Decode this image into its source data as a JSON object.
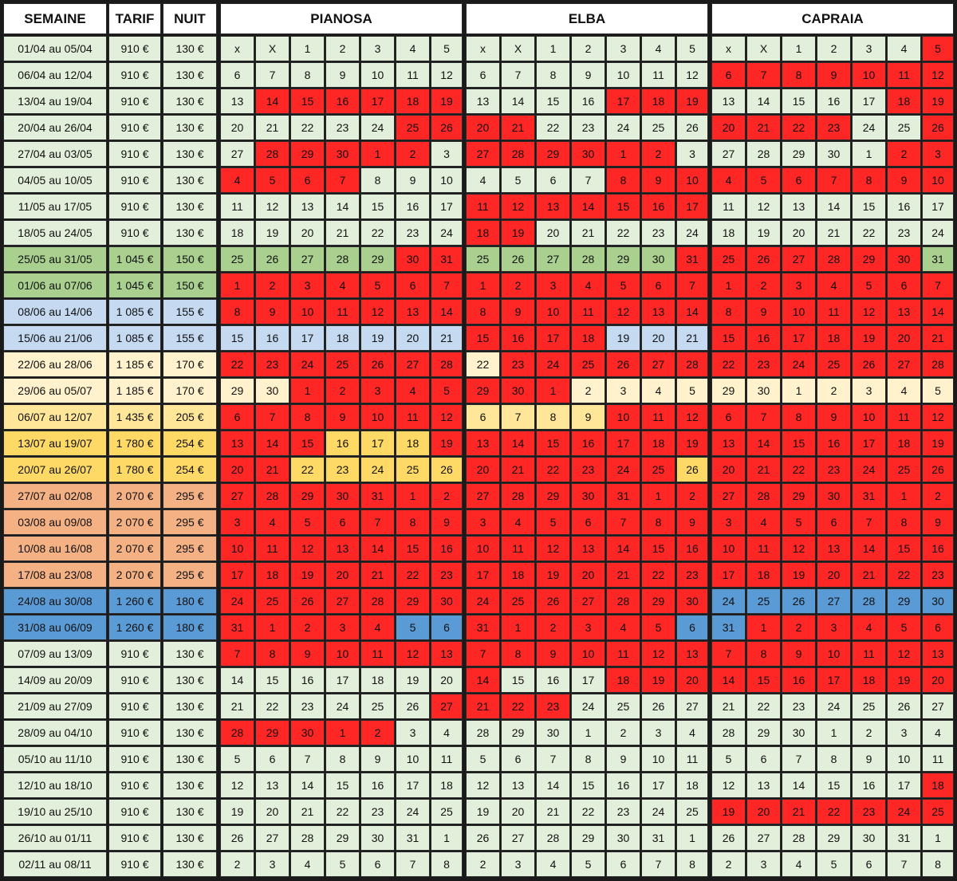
{
  "headers": {
    "week": "SEMAINE",
    "tarif": "TARIF",
    "nuit": "NUIT",
    "pianosa": "PIANOSA",
    "elba": "ELBA",
    "capraia": "CAPRAIA"
  },
  "colors": {
    "g": "#e2efda",
    "G": "#a9d08e",
    "b": "#c5d9f1",
    "B": "#5b9bd5",
    "c": "#fff2cc",
    "y": "#ffe699",
    "Y": "#ffd966",
    "o": "#f4b183",
    "r": "#ff2626",
    "w": "#ffffff"
  },
  "rows": [
    {
      "week": "01/04 au 05/04",
      "tarif": "910 €",
      "nuit": "130 €",
      "days": [
        "x",
        "X",
        "1",
        "2",
        "3",
        "4",
        "5"
      ],
      "color": "g",
      "p": "ggggggg",
      "e": "ggggggg",
      "c": "ggggggr"
    },
    {
      "week": "06/04 au 12/04",
      "tarif": "910 €",
      "nuit": "130 €",
      "days": [
        "6",
        "7",
        "8",
        "9",
        "10",
        "11",
        "12"
      ],
      "color": "g",
      "p": "ggggggg",
      "e": "ggggggg",
      "c": "rrrrrrr"
    },
    {
      "week": "13/04 au 19/04",
      "tarif": "910 €",
      "nuit": "130 €",
      "days": [
        "13",
        "14",
        "15",
        "16",
        "17",
        "18",
        "19"
      ],
      "color": "g",
      "p": "grrrrrr",
      "e": "ggggrrr",
      "c": "gggggrr"
    },
    {
      "week": "20/04 au 26/04",
      "tarif": "910 €",
      "nuit": "130 €",
      "days": [
        "20",
        "21",
        "22",
        "23",
        "24",
        "25",
        "26"
      ],
      "color": "g",
      "p": "gggggrr",
      "e": "rrggggg",
      "c": "rrrrggr"
    },
    {
      "week": "27/04 au 03/05",
      "tarif": "910 €",
      "nuit": "130 €",
      "days": [
        "27",
        "28",
        "29",
        "30",
        "1",
        "2",
        "3"
      ],
      "color": "g",
      "p": "grrrrrg",
      "e": "rrrrrrg",
      "c": "gggggrr"
    },
    {
      "week": "04/05 au 10/05",
      "tarif": "910 €",
      "nuit": "130 €",
      "days": [
        "4",
        "5",
        "6",
        "7",
        "8",
        "9",
        "10"
      ],
      "color": "g",
      "p": "rrrrggg",
      "e": "ggggrrr",
      "c": "rrrrrrr"
    },
    {
      "week": "11/05 au 17/05",
      "tarif": "910 €",
      "nuit": "130 €",
      "days": [
        "11",
        "12",
        "13",
        "14",
        "15",
        "16",
        "17"
      ],
      "color": "g",
      "p": "ggggggg",
      "e": "rrrrrrr",
      "c": "ggggggg"
    },
    {
      "week": "18/05 au 24/05",
      "tarif": "910 €",
      "nuit": "130 €",
      "days": [
        "18",
        "19",
        "20",
        "21",
        "22",
        "23",
        "24"
      ],
      "color": "g",
      "p": "ggggggg",
      "e": "rrggggg",
      "c": "ggggggg"
    },
    {
      "week": "25/05 au 31/05",
      "tarif": "1 045 €",
      "nuit": "150 €",
      "days": [
        "25",
        "26",
        "27",
        "28",
        "29",
        "30",
        "31"
      ],
      "color": "G",
      "p": "GGGGGrr",
      "e": "GGGGGGr",
      "c": "rrrrrrG"
    },
    {
      "week": "01/06 au 07/06",
      "tarif": "1 045 €",
      "nuit": "150 €",
      "days": [
        "1",
        "2",
        "3",
        "4",
        "5",
        "6",
        "7"
      ],
      "color": "G",
      "p": "rrrrrrr",
      "e": "rrrrrrr",
      "c": "rrrrrrr"
    },
    {
      "week": "08/06 au 14/06",
      "tarif": "1 085 €",
      "nuit": "155 €",
      "days": [
        "8",
        "9",
        "10",
        "11",
        "12",
        "13",
        "14"
      ],
      "color": "b",
      "p": "rrrrrrr",
      "e": "rrrrrrr",
      "c": "rrrrrrr"
    },
    {
      "week": "15/06 au 21/06",
      "tarif": "1 085 €",
      "nuit": "155 €",
      "days": [
        "15",
        "16",
        "17",
        "18",
        "19",
        "20",
        "21"
      ],
      "color": "b",
      "p": "bbbbbbb",
      "e": "rrrrbbb",
      "c": "rrrrrrr"
    },
    {
      "week": "22/06 au 28/06",
      "tarif": "1 185 €",
      "nuit": "170 €",
      "days": [
        "22",
        "23",
        "24",
        "25",
        "26",
        "27",
        "28"
      ],
      "color": "c",
      "p": "rrrrrrr",
      "e": "crrrrrr",
      "c": "rrrrrrr"
    },
    {
      "week": "29/06 au 05/07",
      "tarif": "1 185 €",
      "nuit": "170 €",
      "days": [
        "29",
        "30",
        "1",
        "2",
        "3",
        "4",
        "5"
      ],
      "color": "c",
      "p": "ccrrrrr",
      "e": "rrrcccc",
      "c": "ccccccc"
    },
    {
      "week": "06/07 au 12/07",
      "tarif": "1 435 €",
      "nuit": "205 €",
      "days": [
        "6",
        "7",
        "8",
        "9",
        "10",
        "11",
        "12"
      ],
      "color": "y",
      "p": "rrrrrrr",
      "e": "yyyyrrr",
      "c": "rrrrrrr"
    },
    {
      "week": "13/07 au 19/07",
      "tarif": "1 780 €",
      "nuit": "254 €",
      "days": [
        "13",
        "14",
        "15",
        "16",
        "17",
        "18",
        "19"
      ],
      "color": "Y",
      "p": "rrrYYYr",
      "e": "rrrrrrr",
      "c": "rrrrrrr"
    },
    {
      "week": "20/07 au 26/07",
      "tarif": "1 780 €",
      "nuit": "254 €",
      "days": [
        "20",
        "21",
        "22",
        "23",
        "24",
        "25",
        "26"
      ],
      "color": "Y",
      "p": "rrYYYYY",
      "e": "rrrrrrY",
      "c": "rrrrrrr"
    },
    {
      "week": "27/07 au 02/08",
      "tarif": "2 070 €",
      "nuit": "295 €",
      "days": [
        "27",
        "28",
        "29",
        "30",
        "31",
        "1",
        "2"
      ],
      "color": "o",
      "p": "rrrrrrr",
      "e": "rrrrrrr",
      "c": "rrrrrrr"
    },
    {
      "week": "03/08 au 09/08",
      "tarif": "2 070 €",
      "nuit": "295 €",
      "days": [
        "3",
        "4",
        "5",
        "6",
        "7",
        "8",
        "9"
      ],
      "color": "o",
      "p": "rrrrrrr",
      "e": "rrrrrrr",
      "c": "rrrrrrr"
    },
    {
      "week": "10/08 au 16/08",
      "tarif": "2 070 €",
      "nuit": "295 €",
      "days": [
        "10",
        "11",
        "12",
        "13",
        "14",
        "15",
        "16"
      ],
      "color": "o",
      "p": "rrrrrrr",
      "e": "rrrrrrr",
      "c": "rrrrrrr"
    },
    {
      "week": "17/08 au 23/08",
      "tarif": "2 070 €",
      "nuit": "295 €",
      "days": [
        "17",
        "18",
        "19",
        "20",
        "21",
        "22",
        "23"
      ],
      "color": "o",
      "p": "rrrrrrr",
      "e": "rrrrrrr",
      "c": "rrrrrrr"
    },
    {
      "week": "24/08 au 30/08",
      "tarif": "1 260 €",
      "nuit": "180 €",
      "days": [
        "24",
        "25",
        "26",
        "27",
        "28",
        "29",
        "30"
      ],
      "color": "B",
      "p": "rrrrrrr",
      "e": "rrrrrrr",
      "c": "BBBBBBB"
    },
    {
      "week": "31/08 au 06/09",
      "tarif": "1 260 €",
      "nuit": "180 €",
      "days": [
        "31",
        "1",
        "2",
        "3",
        "4",
        "5",
        "6"
      ],
      "color": "B",
      "p": "rrrrrBB",
      "e": "rrrrrrB",
      "c": "Brrrrrr"
    },
    {
      "week": "07/09 au 13/09",
      "tarif": "910 €",
      "nuit": "130 €",
      "days": [
        "7",
        "8",
        "9",
        "10",
        "11",
        "12",
        "13"
      ],
      "color": "g",
      "p": "rrrrrrr",
      "e": "rrrrrrr",
      "c": "rrrrrrr"
    },
    {
      "week": "14/09 au 20/09",
      "tarif": "910 €",
      "nuit": "130 €",
      "days": [
        "14",
        "15",
        "16",
        "17",
        "18",
        "19",
        "20"
      ],
      "color": "g",
      "p": "ggggggg",
      "e": "rgggrrr",
      "c": "rrrrrrr"
    },
    {
      "week": "21/09 au 27/09",
      "tarif": "910 €",
      "nuit": "130 €",
      "days": [
        "21",
        "22",
        "23",
        "24",
        "25",
        "26",
        "27"
      ],
      "color": "g",
      "p": "ggggggr",
      "e": "rrrgggg",
      "c": "ggggggg"
    },
    {
      "week": "28/09 au 04/10",
      "tarif": "910 €",
      "nuit": "130 €",
      "days": [
        "28",
        "29",
        "30",
        "1",
        "2",
        "3",
        "4"
      ],
      "color": "g",
      "p": "rrrrrgg",
      "e": "ggggggg",
      "c": "ggggggg"
    },
    {
      "week": "05/10 au 11/10",
      "tarif": "910 €",
      "nuit": "130 €",
      "days": [
        "5",
        "6",
        "7",
        "8",
        "9",
        "10",
        "11"
      ],
      "color": "g",
      "p": "ggggggg",
      "e": "ggggggg",
      "c": "ggggggg"
    },
    {
      "week": "12/10 au 18/10",
      "tarif": "910 €",
      "nuit": "130 €",
      "days": [
        "12",
        "13",
        "14",
        "15",
        "16",
        "17",
        "18"
      ],
      "color": "g",
      "p": "ggggggg",
      "e": "ggggggg",
      "c": "ggggggr"
    },
    {
      "week": "19/10 au 25/10",
      "tarif": "910 €",
      "nuit": "130 €",
      "days": [
        "19",
        "20",
        "21",
        "22",
        "23",
        "24",
        "25"
      ],
      "color": "g",
      "p": "ggggggg",
      "e": "ggggggg",
      "c": "rrrrrrr"
    },
    {
      "week": "26/10 au 01/11",
      "tarif": "910 €",
      "nuit": "130 €",
      "days": [
        "26",
        "27",
        "28",
        "29",
        "30",
        "31",
        "1"
      ],
      "color": "g",
      "p": "ggggggg",
      "e": "ggggggg",
      "c": "ggggggg"
    },
    {
      "week": "02/11 au 08/11",
      "tarif": "910 €",
      "nuit": "130 €",
      "days": [
        "2",
        "3",
        "4",
        "5",
        "6",
        "7",
        "8"
      ],
      "color": "g",
      "p": "ggggggg",
      "e": "ggggggg",
      "c": "ggggggg"
    }
  ]
}
